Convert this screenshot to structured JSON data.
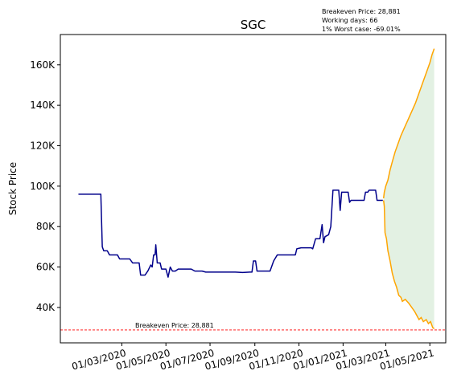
{
  "chart_data": {
    "type": "line",
    "title": "SGC",
    "ylabel": "Stock Price",
    "xlabel": "",
    "ylim": [
      22500,
      175000
    ],
    "xlim": [
      "2019-12-07",
      "2021-05-23"
    ],
    "yticks": [
      40000,
      60000,
      80000,
      100000,
      120000,
      140000,
      160000
    ],
    "ytick_labels": [
      "40K",
      "60K",
      "80K",
      "100K",
      "120K",
      "140K",
      "160K"
    ],
    "xticks": [
      "2020-03-01",
      "2020-05-01",
      "2020-07-01",
      "2020-09-01",
      "2020-11-01",
      "2021-01-01",
      "2021-03-01",
      "2021-05-01"
    ],
    "xtick_labels": [
      "01/03/2020",
      "01/05/2020",
      "01/07/2020",
      "01/09/2020",
      "01/11/2020",
      "01/01/2021",
      "01/03/2021",
      "01/05/2021"
    ],
    "grid": false,
    "info_lines": [
      "Breakeven Price: 28,881",
      "Working days: 66",
      "1% Worst case: -69.01%"
    ],
    "breakeven": {
      "value": 28881,
      "label": "Breakeven Price: 28,881",
      "color": "#ff0000"
    },
    "history": {
      "color": "#00008b",
      "points": [
        [
          "2020-01-01",
          96000
        ],
        [
          "2020-01-31",
          96000
        ],
        [
          "2020-02-01",
          96000
        ],
        [
          "2020-02-03",
          70000
        ],
        [
          "2020-02-05",
          68000
        ],
        [
          "2020-02-10",
          68000
        ],
        [
          "2020-02-13",
          66000
        ],
        [
          "2020-02-24",
          66000
        ],
        [
          "2020-02-27",
          64000
        ],
        [
          "2020-03-12",
          64000
        ],
        [
          "2020-03-16",
          62000
        ],
        [
          "2020-03-25",
          62000
        ],
        [
          "2020-03-27",
          56000
        ],
        [
          "2020-04-02",
          56000
        ],
        [
          "2020-04-06",
          58000
        ],
        [
          "2020-04-10",
          61000
        ],
        [
          "2020-04-12",
          60000
        ],
        [
          "2020-04-14",
          66000
        ],
        [
          "2020-04-16",
          66000
        ],
        [
          "2020-04-17",
          71000
        ],
        [
          "2020-04-19",
          62000
        ],
        [
          "2020-04-23",
          62000
        ],
        [
          "2020-04-25",
          59000
        ],
        [
          "2020-05-01",
          59000
        ],
        [
          "2020-05-04",
          55000
        ],
        [
          "2020-05-07",
          60000
        ],
        [
          "2020-05-10",
          58000
        ],
        [
          "2020-05-14",
          58000
        ],
        [
          "2020-05-18",
          59000
        ],
        [
          "2020-06-05",
          59000
        ],
        [
          "2020-06-10",
          58000
        ],
        [
          "2020-06-20",
          58000
        ],
        [
          "2020-06-25",
          57500
        ],
        [
          "2020-08-05",
          57500
        ],
        [
          "2020-08-15",
          57300
        ],
        [
          "2020-08-25",
          57500
        ],
        [
          "2020-08-28",
          57500
        ],
        [
          "2020-08-30",
          63000
        ],
        [
          "2020-09-02",
          63000
        ],
        [
          "2020-09-04",
          58000
        ],
        [
          "2020-09-22",
          58000
        ],
        [
          "2020-09-27",
          63000
        ],
        [
          "2020-10-02",
          66000
        ],
        [
          "2020-10-27",
          66000
        ],
        [
          "2020-10-29",
          69000
        ],
        [
          "2020-11-04",
          69500
        ],
        [
          "2020-11-18",
          69500
        ],
        [
          "2020-11-20",
          69000
        ],
        [
          "2020-11-24",
          74000
        ],
        [
          "2020-11-30",
          74000
        ],
        [
          "2020-12-03",
          81000
        ],
        [
          "2020-12-05",
          72000
        ],
        [
          "2020-12-07",
          75000
        ],
        [
          "2020-12-12",
          76000
        ],
        [
          "2020-12-15",
          80000
        ],
        [
          "2020-12-18",
          98000
        ],
        [
          "2020-12-26",
          98000
        ],
        [
          "2020-12-28",
          88000
        ],
        [
          "2020-12-30",
          97000
        ],
        [
          "2021-01-08",
          97000
        ],
        [
          "2021-01-10",
          92000
        ],
        [
          "2021-01-12",
          93000
        ],
        [
          "2021-01-30",
          93000
        ],
        [
          "2021-02-01",
          97000
        ],
        [
          "2021-02-04",
          97000
        ],
        [
          "2021-02-06",
          98000
        ],
        [
          "2021-02-15",
          98000
        ],
        [
          "2021-02-17",
          93000
        ],
        [
          "2021-02-25",
          93000
        ]
      ]
    },
    "projection": {
      "color": "#ffa500",
      "fill_color": "#e3f1e3",
      "upper": [
        [
          "2021-02-26",
          94000
        ],
        [
          "2021-02-27",
          97000
        ],
        [
          "2021-03-01",
          100000
        ],
        [
          "2021-03-04",
          103000
        ],
        [
          "2021-03-07",
          108000
        ],
        [
          "2021-03-10",
          112000
        ],
        [
          "2021-03-14",
          117000
        ],
        [
          "2021-03-18",
          121000
        ],
        [
          "2021-03-22",
          125000
        ],
        [
          "2021-03-27",
          129000
        ],
        [
          "2021-04-01",
          133000
        ],
        [
          "2021-04-06",
          137000
        ],
        [
          "2021-04-11",
          141000
        ],
        [
          "2021-04-16",
          146000
        ],
        [
          "2021-04-21",
          151000
        ],
        [
          "2021-04-26",
          156000
        ],
        [
          "2021-05-01",
          161000
        ],
        [
          "2021-05-04",
          165000
        ],
        [
          "2021-05-07",
          168000
        ]
      ],
      "lower": [
        [
          "2021-02-26",
          93000
        ],
        [
          "2021-02-27",
          90000
        ],
        [
          "2021-02-28",
          77000
        ],
        [
          "2021-03-02",
          74000
        ],
        [
          "2021-03-04",
          68000
        ],
        [
          "2021-03-07",
          63000
        ],
        [
          "2021-03-10",
          57000
        ],
        [
          "2021-03-13",
          53000
        ],
        [
          "2021-03-16",
          50000
        ],
        [
          "2021-03-19",
          46000
        ],
        [
          "2021-03-22",
          45000
        ],
        [
          "2021-03-24",
          43000
        ],
        [
          "2021-03-28",
          44000
        ],
        [
          "2021-04-02",
          42000
        ],
        [
          "2021-04-06",
          40000
        ],
        [
          "2021-04-10",
          38000
        ],
        [
          "2021-04-13",
          36000
        ],
        [
          "2021-04-16",
          34000
        ],
        [
          "2021-04-19",
          35000
        ],
        [
          "2021-04-22",
          33000
        ],
        [
          "2021-04-26",
          34000
        ],
        [
          "2021-04-29",
          32000
        ],
        [
          "2021-05-02",
          33000
        ],
        [
          "2021-05-05",
          30000
        ],
        [
          "2021-05-07",
          29500
        ]
      ]
    }
  }
}
